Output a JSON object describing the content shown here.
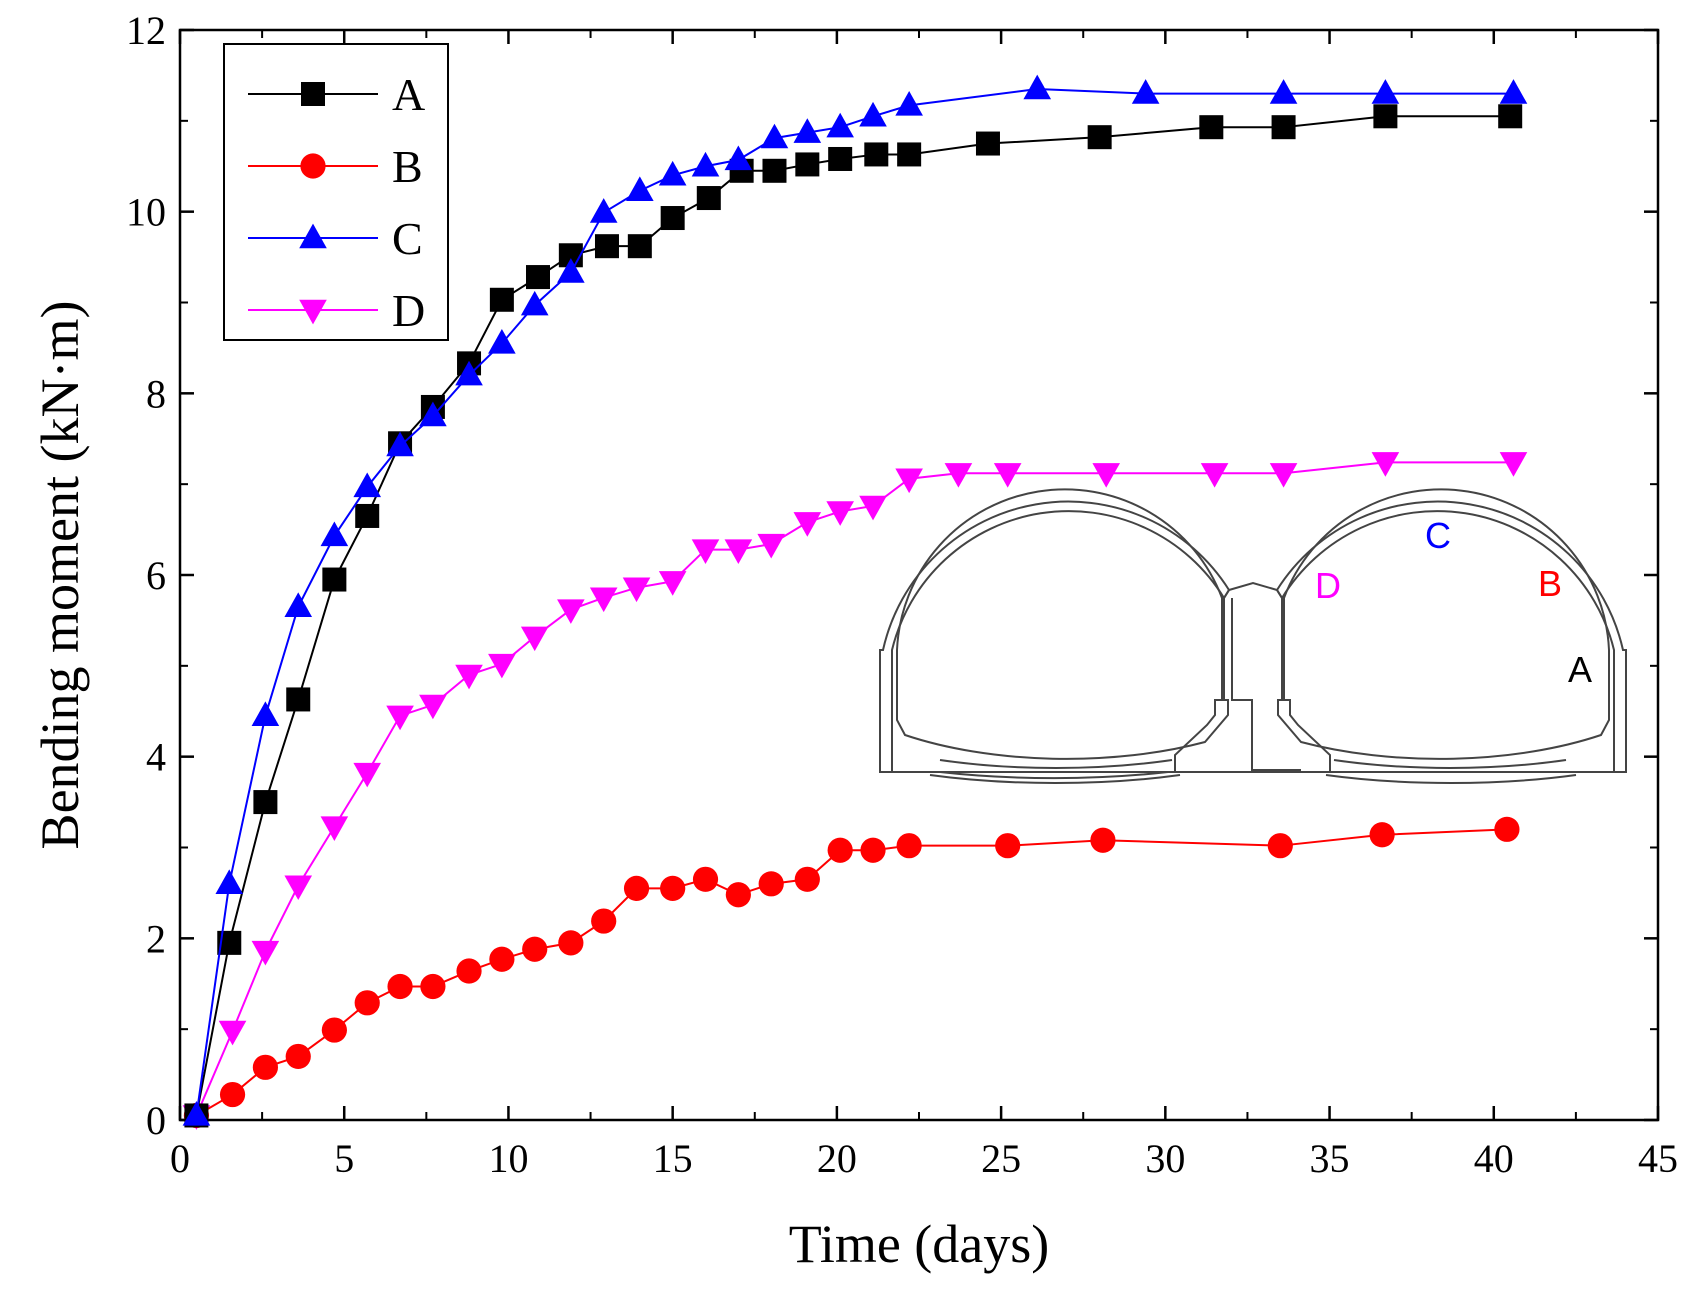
{
  "chart_data": {
    "type": "line",
    "xlabel": "Time (days)",
    "ylabel": "Bending moment (kN·m)",
    "xlim": [
      0,
      45
    ],
    "ylim": [
      0,
      12
    ],
    "xticks": [
      0,
      5,
      10,
      15,
      20,
      25,
      30,
      35,
      40,
      45
    ],
    "yticks": [
      0,
      2,
      4,
      6,
      8,
      10,
      12
    ],
    "xtick_labels": [
      "0",
      "5",
      "10",
      "15",
      "20",
      "25",
      "30",
      "35",
      "40",
      "45"
    ],
    "ytick_labels": [
      "0",
      "2",
      "4",
      "6",
      "8",
      "10",
      "12"
    ],
    "grid": false,
    "legend_position": "top-left",
    "series": [
      {
        "name": "A",
        "color": "#000000",
        "marker": "square",
        "x": [
          0.5,
          1.5,
          2.6,
          3.6,
          4.7,
          5.7,
          6.7,
          7.7,
          8.8,
          9.8,
          10.9,
          11.9,
          13.0,
          14.0,
          15.0,
          16.1,
          17.1,
          18.1,
          19.1,
          20.1,
          21.2,
          22.2,
          24.6,
          28.0,
          31.4,
          33.6,
          36.7,
          40.5
        ],
        "y": [
          0.05,
          1.95,
          3.5,
          4.63,
          5.95,
          6.65,
          7.45,
          7.85,
          8.33,
          9.03,
          9.28,
          9.52,
          9.62,
          9.62,
          9.93,
          10.15,
          10.45,
          10.45,
          10.52,
          10.58,
          10.63,
          10.63,
          10.75,
          10.82,
          10.93,
          10.93,
          11.05,
          11.05
        ]
      },
      {
        "name": "B",
        "color": "#ff0000",
        "marker": "circle",
        "x": [
          0.5,
          1.6,
          2.6,
          3.6,
          4.7,
          5.7,
          6.7,
          7.7,
          8.8,
          9.8,
          10.8,
          11.9,
          12.9,
          13.9,
          15.0,
          16.0,
          17.0,
          18.0,
          19.1,
          20.1,
          21.1,
          22.2,
          25.2,
          28.1,
          33.5,
          36.6,
          40.4
        ],
        "y": [
          0.05,
          0.28,
          0.58,
          0.7,
          0.99,
          1.29,
          1.47,
          1.47,
          1.64,
          1.77,
          1.88,
          1.95,
          2.19,
          2.55,
          2.55,
          2.65,
          2.48,
          2.6,
          2.65,
          2.97,
          2.97,
          3.02,
          3.02,
          3.08,
          3.02,
          3.14,
          3.2
        ]
      },
      {
        "name": "C",
        "color": "#0000ff",
        "marker": "triangle-up",
        "x": [
          0.5,
          1.5,
          2.6,
          3.6,
          4.7,
          5.7,
          6.7,
          7.7,
          8.8,
          9.8,
          10.8,
          11.9,
          12.9,
          14.0,
          15.0,
          16.0,
          17.0,
          18.1,
          19.1,
          20.1,
          21.1,
          22.2,
          26.1,
          29.4,
          33.6,
          36.7,
          40.6
        ],
        "y": [
          0.05,
          2.6,
          4.45,
          5.65,
          6.43,
          6.97,
          7.42,
          7.75,
          8.2,
          8.55,
          8.97,
          9.33,
          9.99,
          10.23,
          10.4,
          10.5,
          10.57,
          10.81,
          10.87,
          10.93,
          11.05,
          11.17,
          11.35,
          11.3,
          11.3,
          11.3,
          11.3
        ]
      },
      {
        "name": "D",
        "color": "#ff00ff",
        "marker": "triangle-down",
        "x": [
          0.5,
          1.6,
          2.6,
          3.6,
          4.7,
          5.7,
          6.7,
          7.7,
          8.8,
          9.8,
          10.8,
          11.9,
          12.9,
          13.9,
          15.0,
          16.0,
          17.0,
          18.0,
          19.1,
          20.1,
          21.1,
          22.2,
          23.7,
          25.2,
          28.2,
          31.5,
          33.6,
          36.7,
          40.6
        ],
        "y": [
          0.05,
          0.98,
          1.86,
          2.58,
          3.23,
          3.82,
          4.45,
          4.57,
          4.9,
          5.02,
          5.32,
          5.62,
          5.75,
          5.86,
          5.93,
          6.28,
          6.28,
          6.34,
          6.58,
          6.7,
          6.76,
          7.06,
          7.12,
          7.12,
          7.12,
          7.12,
          7.12,
          7.24,
          7.24
        ]
      }
    ],
    "inset": {
      "description_labels": [
        "A",
        "B",
        "C",
        "D"
      ],
      "label_colors": {
        "A": "#000000",
        "B": "#ff0000",
        "C": "#0000ff",
        "D": "#ff00ff"
      }
    }
  }
}
